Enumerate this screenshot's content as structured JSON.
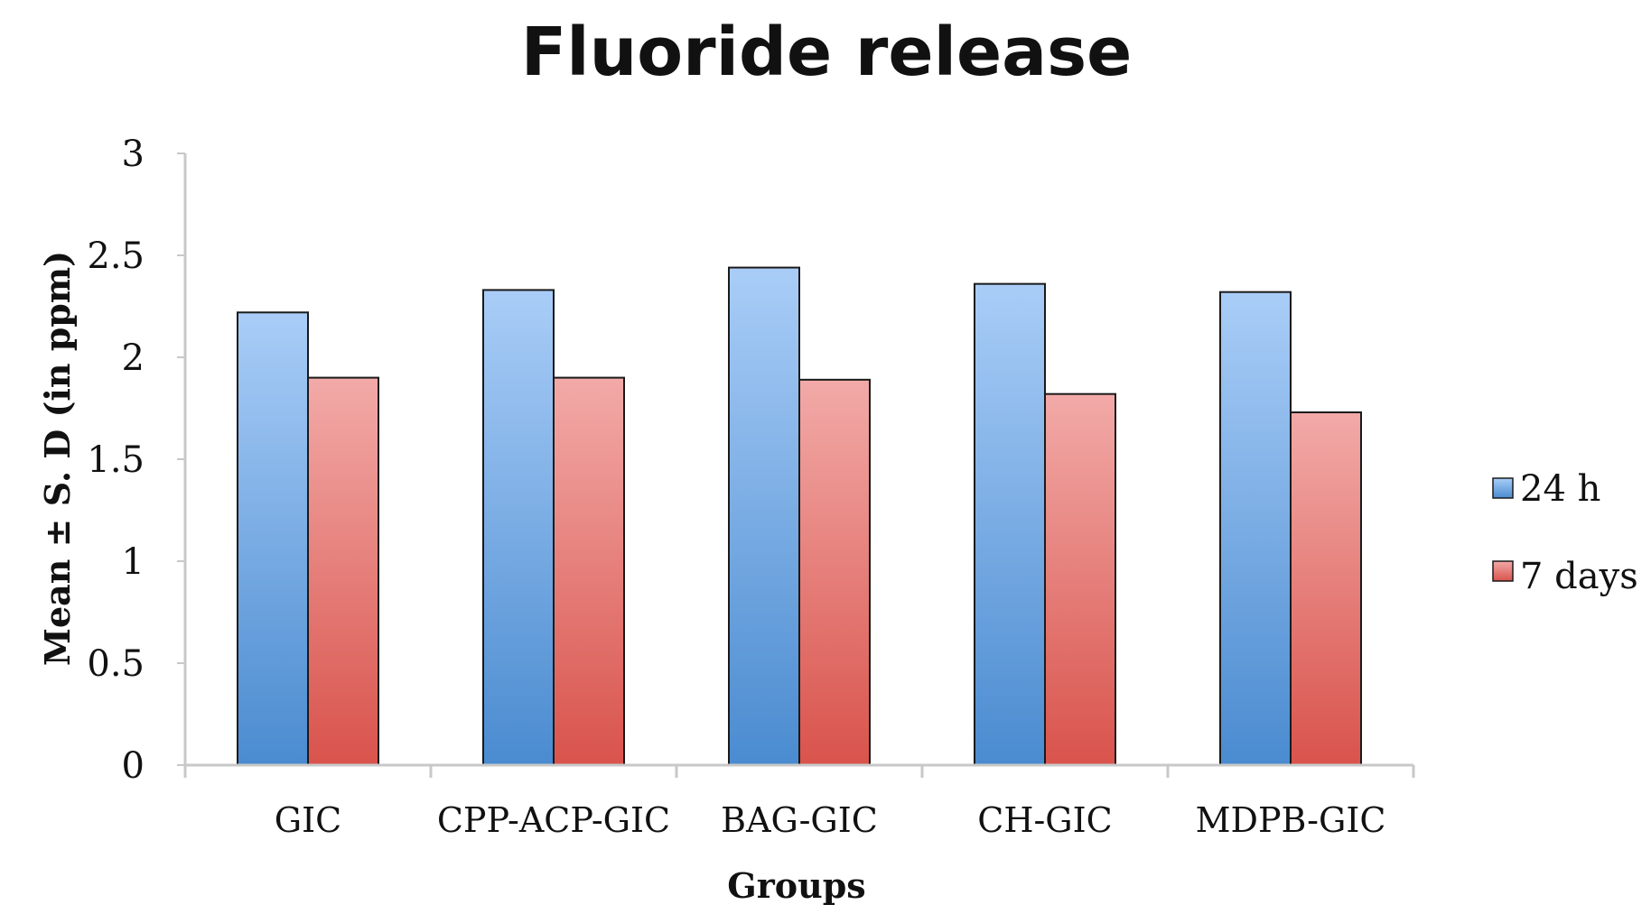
{
  "chart_data": {
    "type": "bar",
    "title": "Fluoride release",
    "xlabel": "Groups",
    "ylabel": "Mean ± S. D (in ppm)",
    "categories": [
      "GIC",
      "CPP-ACP-GIC",
      "BAG-GIC",
      "CH-GIC",
      "MDPB-GIC"
    ],
    "series": [
      {
        "name": "24 h",
        "values": [
          2.22,
          2.33,
          2.44,
          2.36,
          2.32
        ],
        "color": "#5b9bd5"
      },
      {
        "name": "7 days",
        "values": [
          1.9,
          1.9,
          1.89,
          1.82,
          1.73
        ],
        "color": "#e06666"
      }
    ],
    "ylim": [
      0,
      3
    ],
    "yticks": [
      "0",
      "0.5",
      "1",
      "1.5",
      "2",
      "2.5",
      "3"
    ],
    "grid": false,
    "legend_position": "right"
  }
}
